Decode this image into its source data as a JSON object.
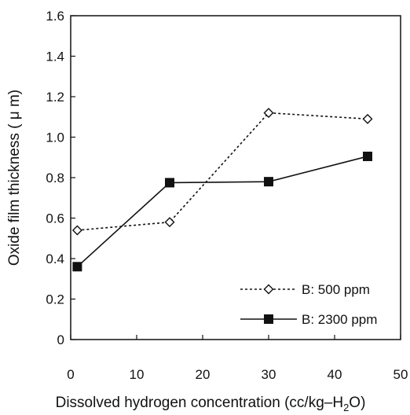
{
  "chart_data": {
    "type": "line",
    "xlabel_main": "Dissolved hydrogen concentration (cc/kg–H",
    "xlabel_sub": "2",
    "xlabel_end": "O)",
    "ylabel": "Oxide film thickness ( μ m)",
    "xlim": [
      0,
      50
    ],
    "ylim": [
      0,
      1.6
    ],
    "x_ticks": [
      "0",
      "10",
      "20",
      "30",
      "40",
      "50"
    ],
    "y_ticks": [
      "0",
      "0.2",
      "0.4",
      "0.6",
      "0.8",
      "1.0",
      "1.2",
      "1.4",
      "1.6"
    ],
    "grid": false,
    "legend_position": "bottom-right",
    "series": [
      {
        "name": "B: 500 ppm",
        "marker": "open-diamond",
        "line_style": "dotted",
        "x": [
          1,
          15,
          30,
          45
        ],
        "y": [
          0.54,
          0.58,
          1.12,
          1.09
        ]
      },
      {
        "name": "B: 2300 ppm",
        "marker": "filled-square",
        "line_style": "solid",
        "x": [
          1,
          15,
          30,
          45
        ],
        "y": [
          0.36,
          0.775,
          0.78,
          0.905
        ]
      }
    ]
  }
}
